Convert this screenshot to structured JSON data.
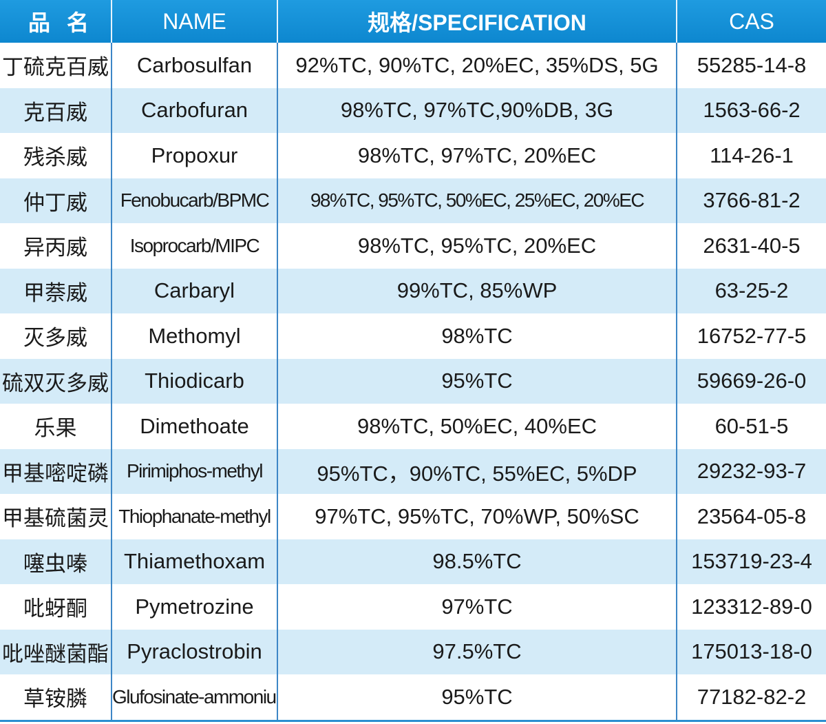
{
  "header": {
    "cn_name": "品名",
    "name": "NAME",
    "spec": "规格/SPECIFICATION",
    "cas": "CAS"
  },
  "colors": {
    "header_bg": "#1393d8",
    "alt_row": "#d4ebf8",
    "divider": "#3d86c6"
  },
  "rows": [
    {
      "cn": "丁硫克百威",
      "name": "Carbosulfan",
      "spec": "92%TC, 90%TC, 20%EC, 35%DS, 5G",
      "cas": "55285-14-8"
    },
    {
      "cn": "克百威",
      "name": "Carbofuran",
      "spec": "98%TC, 97%TC,90%DB, 3G",
      "cas": "1563-66-2"
    },
    {
      "cn": "残杀威",
      "name": "Propoxur",
      "spec": "98%TC, 97%TC, 20%EC",
      "cas": "114-26-1"
    },
    {
      "cn": "仲丁威",
      "name": "Fenobucarb/BPMC",
      "spec": "98%TC, 95%TC, 50%EC, 25%EC, 20%EC",
      "cas": "3766-81-2"
    },
    {
      "cn": "异丙威",
      "name": "Isoprocarb/MIPC",
      "spec": "98%TC, 95%TC, 20%EC",
      "cas": "2631-40-5"
    },
    {
      "cn": "甲萘威",
      "name": "Carbaryl",
      "spec": "99%TC, 85%WP",
      "cas": "63-25-2"
    },
    {
      "cn": "灭多威",
      "name": "Methomyl",
      "spec": "98%TC",
      "cas": "16752-77-5"
    },
    {
      "cn": "硫双灭多威",
      "name": "Thiodicarb",
      "spec": "95%TC",
      "cas": "59669-26-0"
    },
    {
      "cn": "乐果",
      "name": "Dimethoate",
      "spec": "98%TC, 50%EC, 40%EC",
      "cas": "60-51-5"
    },
    {
      "cn": "甲基嘧啶磷",
      "name": "Pirimiphos-methyl",
      "spec": "95%TC，90%TC, 55%EC, 5%DP",
      "cas": "29232-93-7"
    },
    {
      "cn": "甲基硫菌灵",
      "name": "Thiophanate-methyl",
      "spec": "97%TC, 95%TC, 70%WP, 50%SC",
      "cas": "23564-05-8"
    },
    {
      "cn": "噻虫嗪",
      "name": "Thiamethoxam",
      "spec": "98.5%TC",
      "cas": "153719-23-4"
    },
    {
      "cn": "吡蚜酮",
      "name": "Pymetrozine",
      "spec": "97%TC",
      "cas": "123312-89-0"
    },
    {
      "cn": "吡唑醚菌酯",
      "name": "Pyraclostrobin",
      "spec": "97.5%TC",
      "cas": "175013-18-0"
    },
    {
      "cn": "草铵膦",
      "name": "Glufosinate-ammonium",
      "spec": "95%TC",
      "cas": "77182-82-2"
    }
  ]
}
